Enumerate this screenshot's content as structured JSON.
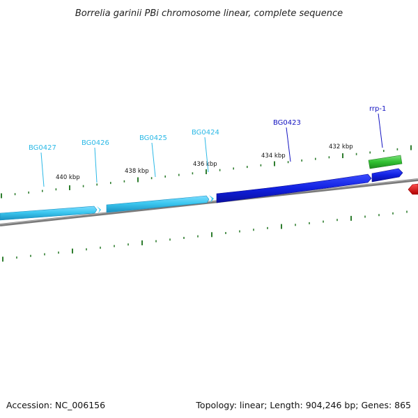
{
  "title": "Borrelia garinii PBi chromosome linear, complete sequence",
  "footer": {
    "accession": "Accession: NC_006156",
    "summary": "Topology: linear; Length: 904,246 bp; Genes: 865"
  },
  "colors": {
    "forward_gene": "#3cc8f0",
    "reverse_gene": "#1020e0",
    "rrna": "#30c030",
    "trna": "#e01010",
    "backbone": "#808080",
    "tick": "#2e7d2e",
    "label_light": "#2ab8e6",
    "label_dark": "#1010c0"
  },
  "scale_labels": [
    "440 kbp",
    "438 kbp",
    "436 kbp",
    "434 kbp",
    "432 kbp"
  ],
  "genes": [
    {
      "id": "BG0427",
      "label": "BG0427",
      "strand": "forward"
    },
    {
      "id": "BG0426",
      "label": "BG0426",
      "strand": "forward"
    },
    {
      "id": "BG0425",
      "label": "BG0425",
      "strand": "forward"
    },
    {
      "id": "BG0424",
      "label": "BG0424",
      "strand": "forward"
    },
    {
      "id": "BG0423",
      "label": "BG0423",
      "strand": "reverse"
    },
    {
      "id": "rrp-1",
      "label": "rrp-1",
      "strand": "rrna"
    }
  ]
}
